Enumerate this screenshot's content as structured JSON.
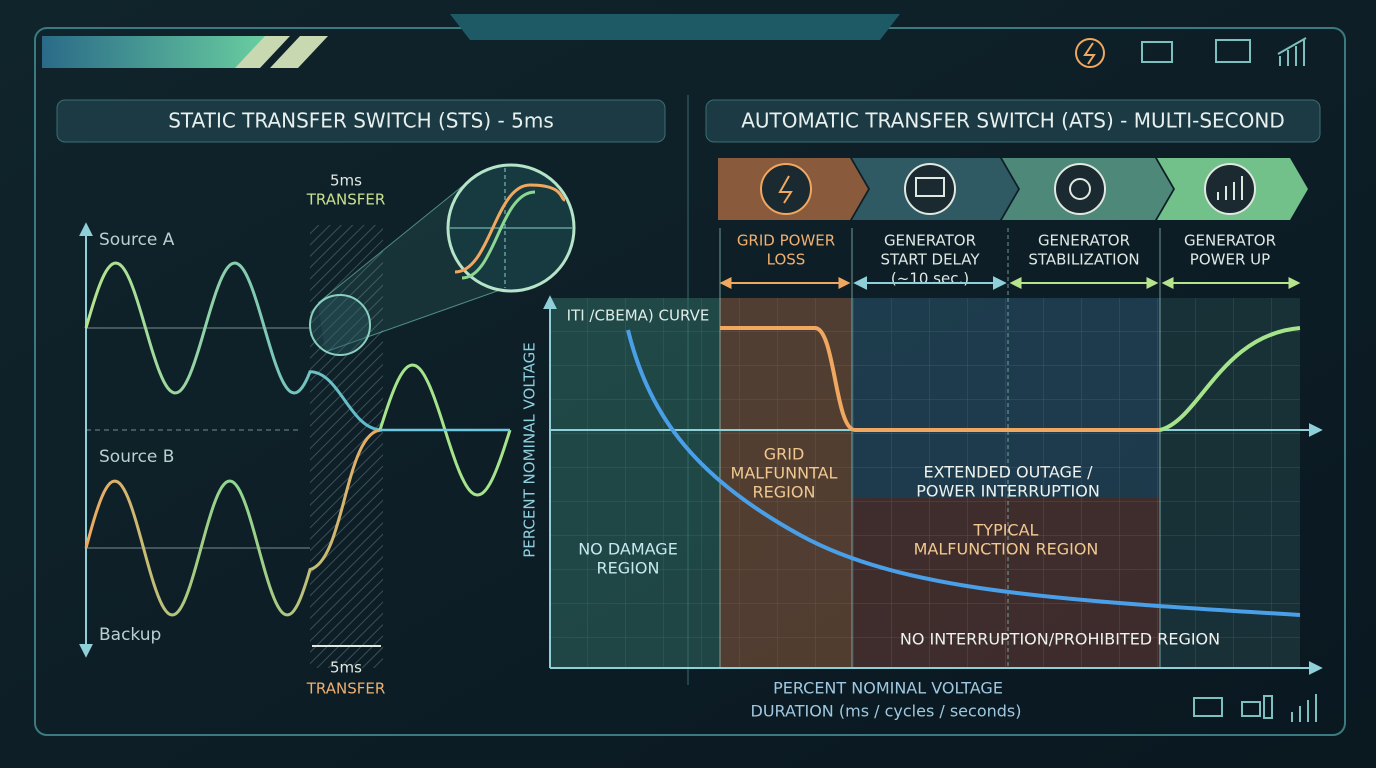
{
  "left_panel": {
    "title": "STATIC TRANSFER SWITCH (STS) - 5ms",
    "transfer_top": [
      "5ms",
      "TRANSFER"
    ],
    "transfer_bottom": [
      "5ms",
      "TRANSFER"
    ],
    "sources": [
      "Source A",
      "Source B",
      "Backup"
    ]
  },
  "right_panel": {
    "title": "AUTOMATIC TRANSFER SWITCH (ATS) - MULTI-SECOND",
    "stages": [
      [
        "GRID POWER",
        "LOSS"
      ],
      [
        "GENERATOR",
        "START DELAY",
        "(~10 sec.)"
      ],
      [
        "GENERATOR",
        "STABILIZATION"
      ],
      [
        "GENERATOR",
        "POWER UP"
      ]
    ],
    "curve_label": "ITI /CBEMA) CURVE",
    "y_axis_label": "PERCENT NOMINAL VOLTAGE",
    "regions": [
      [
        "GRID",
        "MALFUNNTAL",
        "REGION"
      ],
      [
        "EXTENDED OUTAGE /",
        "POWER INTERRUPTION"
      ],
      [
        "TYPICAL",
        "MALFUNCTION REGION"
      ],
      [
        "NO DAMAGE",
        "REGION"
      ],
      [
        "NO INTERRUPTION/PROHIBITED REGION"
      ]
    ],
    "x_axis_label": [
      "PERCENT NOMINAL VOLTAGE",
      "DURATION (ms / cycles / seconds)"
    ]
  }
}
